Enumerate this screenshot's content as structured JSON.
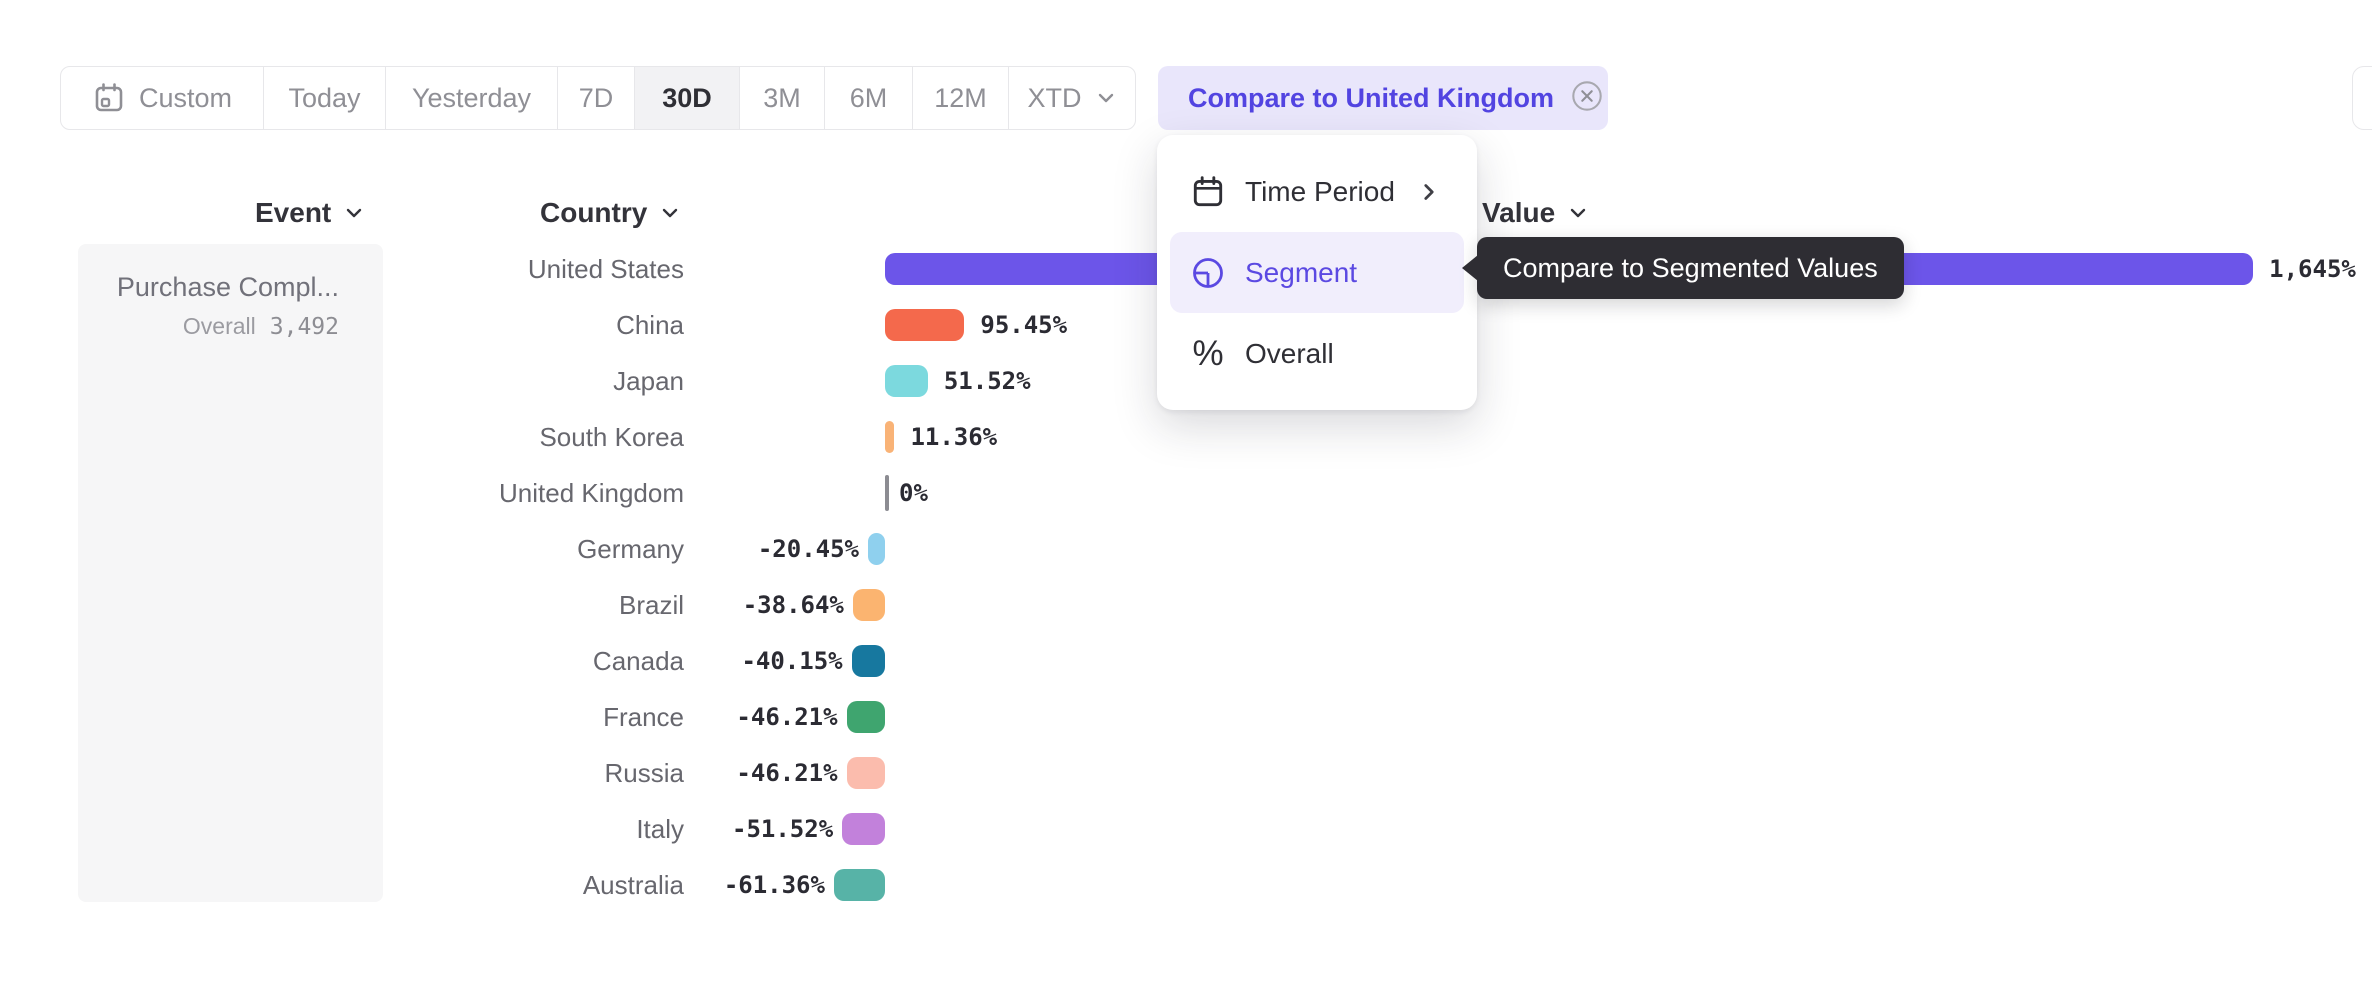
{
  "toolbar": {
    "items": [
      {
        "label": "Custom",
        "icon": "calendar-icon"
      },
      {
        "label": "Today"
      },
      {
        "label": "Yesterday"
      },
      {
        "label": "7D"
      },
      {
        "label": "30D",
        "active": true
      },
      {
        "label": "3M"
      },
      {
        "label": "6M"
      },
      {
        "label": "12M"
      },
      {
        "label": "XTD",
        "chevron": "chevron-down-icon"
      }
    ],
    "active": "30D",
    "compare_label": "Compare to United Kingdom",
    "compare_dismiss_icon": "circle-x-icon"
  },
  "columns": {
    "event": "Event",
    "country": "Country",
    "value": "Value"
  },
  "event_card": {
    "name": "Purchase Compl...",
    "metric_label": "Overall",
    "metric_value": "3,492"
  },
  "chart_data": {
    "type": "bar",
    "orientation": "horizontal",
    "unit": "%",
    "baseline_category": "United Kingdom",
    "categories": [
      "United States",
      "China",
      "Japan",
      "South Korea",
      "United Kingdom",
      "Germany",
      "Brazil",
      "Canada",
      "France",
      "Russia",
      "Italy",
      "Australia"
    ],
    "values": [
      1645,
      95.45,
      51.52,
      11.36,
      0,
      -20.45,
      -38.64,
      -40.15,
      -46.21,
      -46.21,
      -51.52,
      -61.36
    ],
    "value_labels": [
      "1,645%",
      "95.45%",
      "51.52%",
      "11.36%",
      "0%",
      "-20.45%",
      "-38.64%",
      "-40.15%",
      "-46.21%",
      "-46.21%",
      "-51.52%",
      "-61.36%"
    ],
    "bar_colors": [
      "#6C55E9",
      "#F4694C",
      "#7CD9DE",
      "#F9B377",
      "#8C8C92",
      "#8FD0EE",
      "#FBB470",
      "#17789F",
      "#3FA56F",
      "#FBBCAD",
      "#C281DB",
      "#57B3A7"
    ],
    "patterned": [
      false,
      false,
      false,
      false,
      false,
      true,
      true,
      false,
      false,
      false,
      false,
      false
    ],
    "xlim": [
      -100,
      1700
    ],
    "grid": false,
    "legend": false
  },
  "menu": {
    "items": [
      {
        "label": "Time Period",
        "icon": "calendar-icon",
        "submenu_icon": "chevron-right-icon",
        "selected": false
      },
      {
        "label": "Segment",
        "icon": "segment-icon",
        "selected": true
      },
      {
        "label": "Overall",
        "icon": "percent-icon",
        "selected": false
      }
    ]
  },
  "tooltip": {
    "text": "Compare to Segmented Values"
  },
  "colors": {
    "accent_purple": "#5346E1",
    "accent_purple_bg": "#E9E6FB",
    "menu_highlight": "#F1EEFC",
    "tooltip_bg": "#2E2D33",
    "active_range_bg": "#F2F2F4",
    "card_bg": "#F6F6F7"
  }
}
